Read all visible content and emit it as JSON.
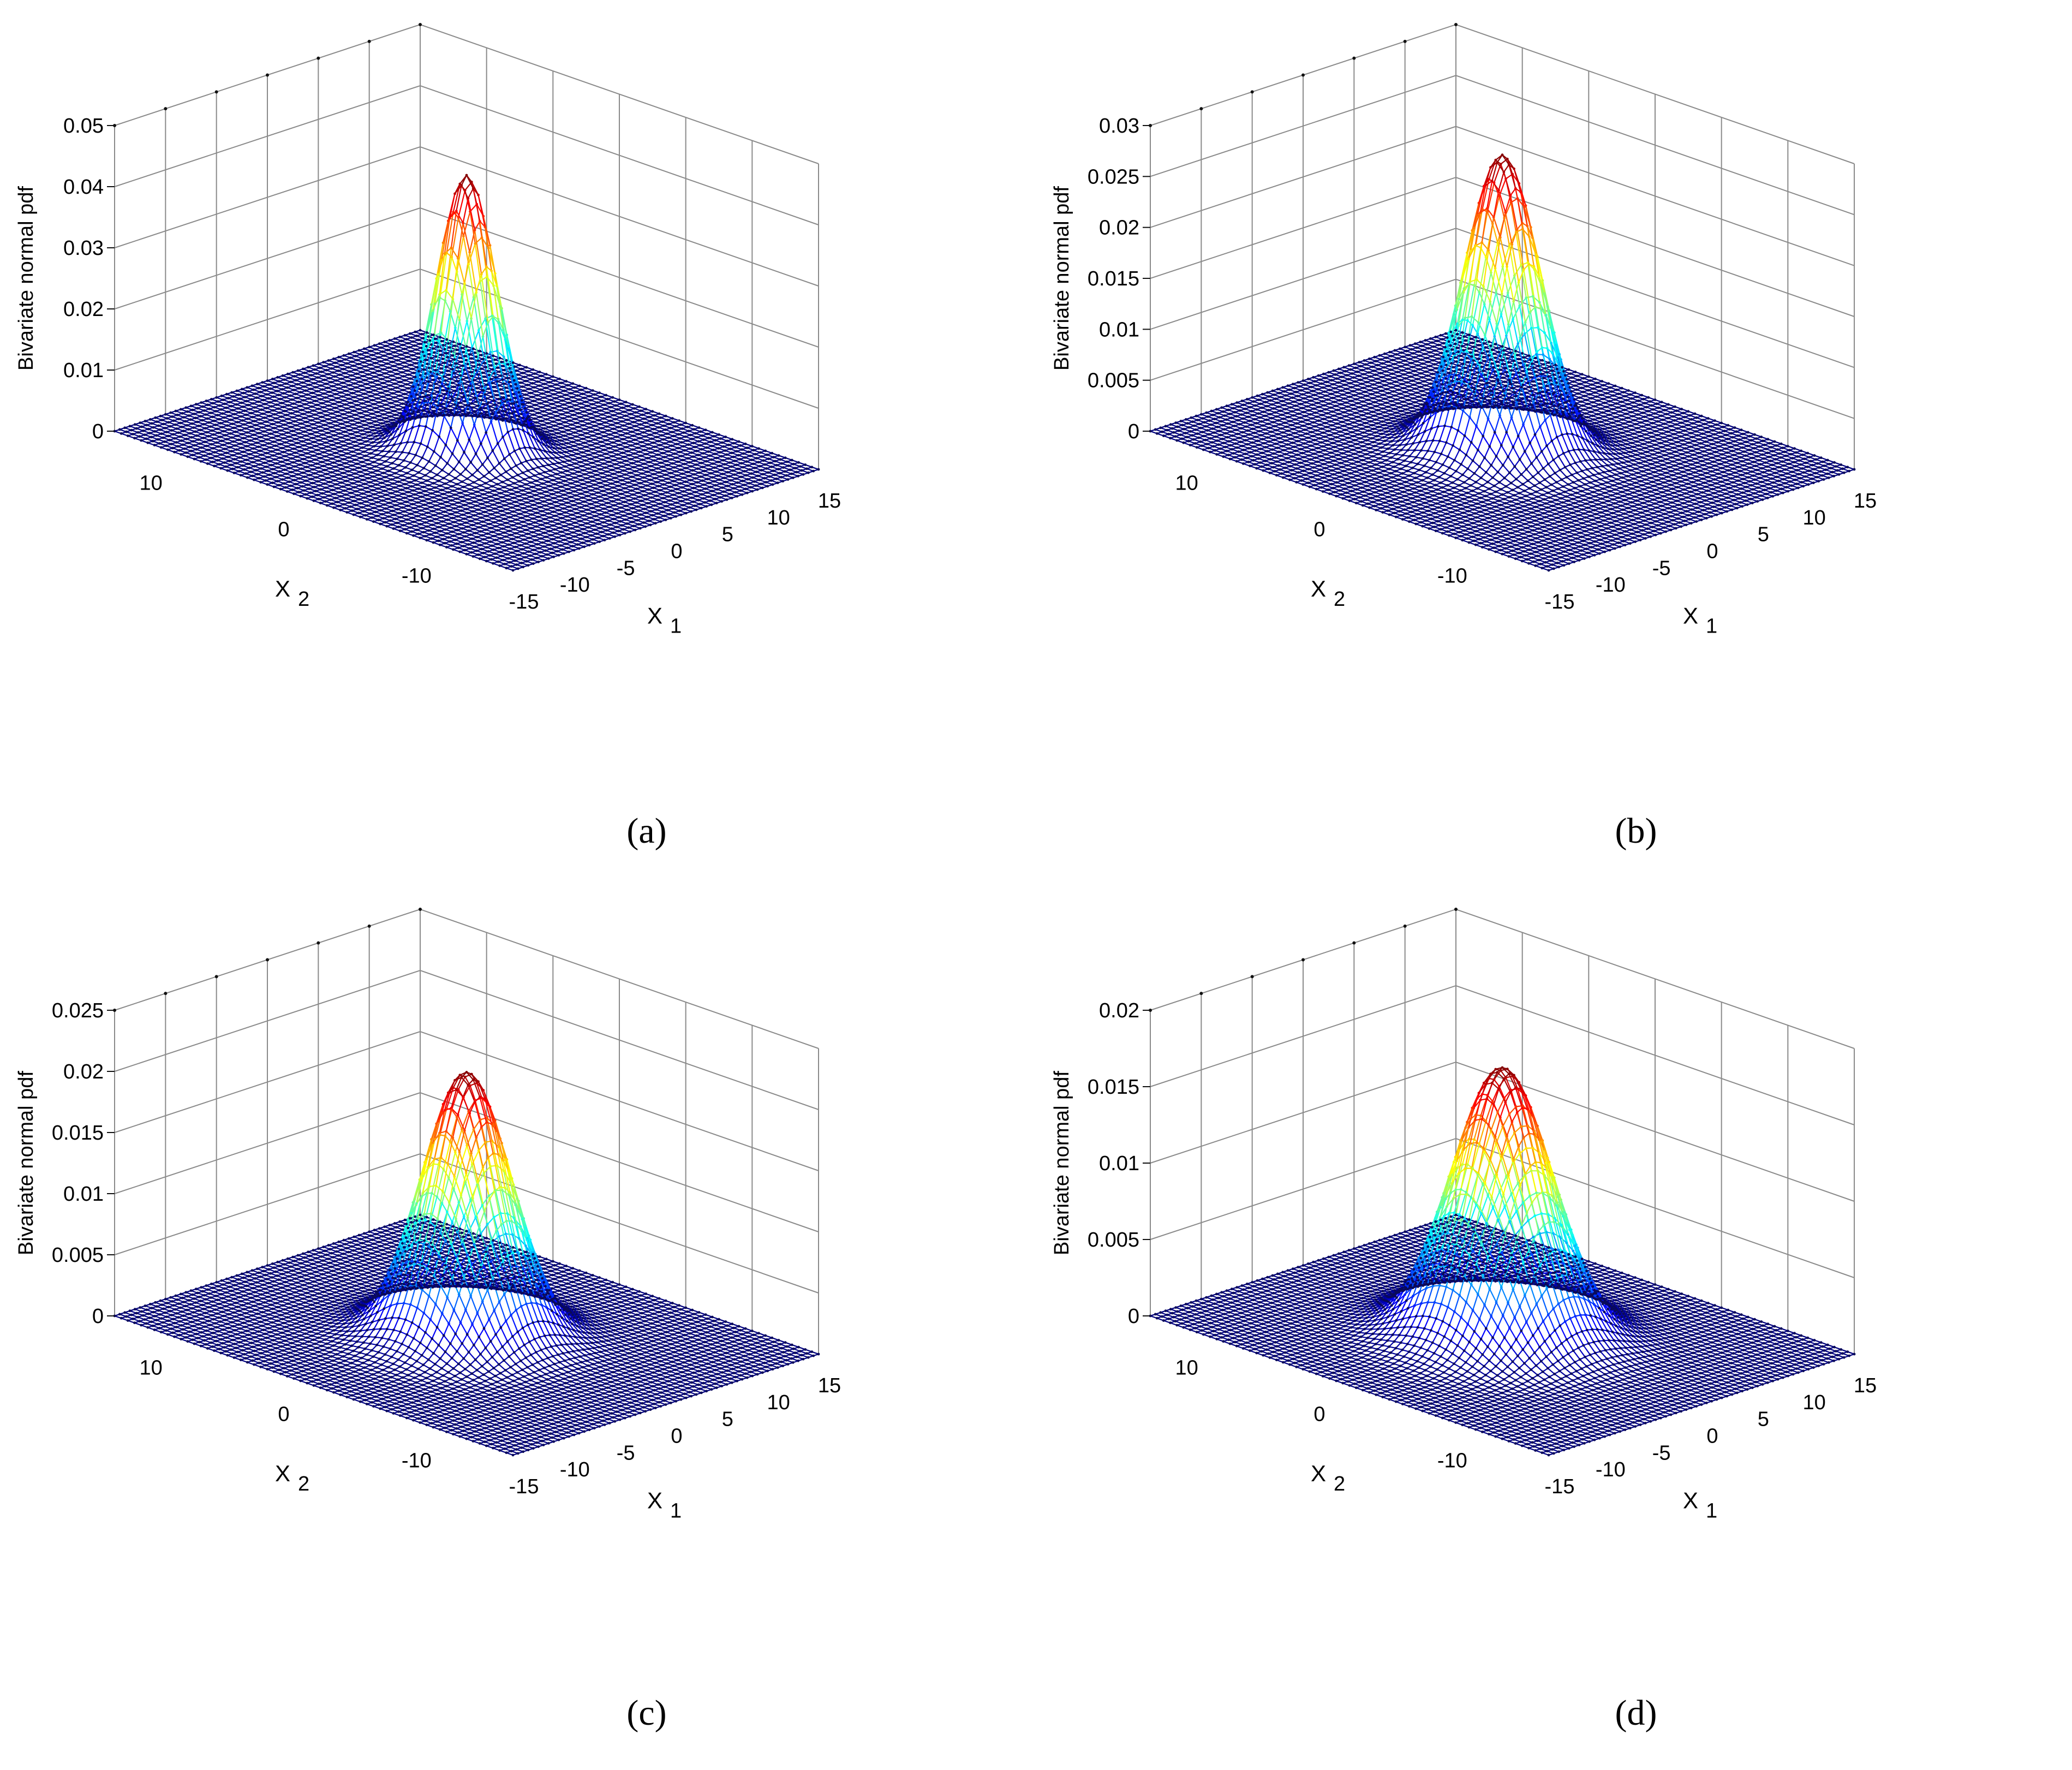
{
  "chart_data": [
    {
      "type": "surface",
      "caption": "(a)",
      "title": "",
      "xlabel": "X",
      "xlabel_sub": "1",
      "ylabel": "X",
      "ylabel_sub": "2",
      "zlabel": "Bivariate normal pdf",
      "xlim": [
        -15,
        15
      ],
      "ylim": [
        -15,
        15
      ],
      "zlim": [
        0,
        0.05
      ],
      "x_ticks": [
        "-15",
        "-10",
        "-5",
        "0",
        "5",
        "10",
        "15"
      ],
      "x_tick_values": [
        -15,
        -10,
        -5,
        0,
        5,
        10,
        15
      ],
      "y_ticks": [
        "-10",
        "0",
        "10"
      ],
      "y_tick_values": [
        -10,
        0,
        10
      ],
      "z_ticks": [
        "0",
        "0.01",
        "0.02",
        "0.03",
        "0.04",
        "0.05"
      ],
      "z_tick_values": [
        0,
        0.01,
        0.02,
        0.03,
        0.04,
        0.05
      ],
      "distribution": {
        "mu_x1": 0,
        "mu_x2": 0,
        "sigma_x1": 2.0,
        "sigma_x2": 1.75,
        "rho": 0,
        "peak": 0.045
      }
    },
    {
      "type": "surface",
      "caption": "(b)",
      "title": "",
      "xlabel": "X",
      "xlabel_sub": "1",
      "ylabel": "X",
      "ylabel_sub": "2",
      "zlabel": "Bivariate normal pdf",
      "xlim": [
        -15,
        15
      ],
      "ylim": [
        -15,
        15
      ],
      "zlim": [
        0,
        0.03
      ],
      "x_ticks": [
        "-15",
        "-10",
        "-5",
        "0",
        "5",
        "10",
        "15"
      ],
      "x_tick_values": [
        -15,
        -10,
        -5,
        0,
        5,
        10,
        15
      ],
      "y_ticks": [
        "-10",
        "0",
        "10"
      ],
      "y_tick_values": [
        -10,
        0,
        10
      ],
      "z_ticks": [
        "0",
        "0.005",
        "0.01",
        "0.015",
        "0.02",
        "0.025",
        "0.03"
      ],
      "z_tick_values": [
        0,
        0.005,
        0.01,
        0.015,
        0.02,
        0.025,
        0.03
      ],
      "distribution": {
        "mu_x1": 0,
        "mu_x2": 0,
        "sigma_x1": 2.5,
        "sigma_x2": 2.2,
        "rho": 0,
        "peak": 0.029
      }
    },
    {
      "type": "surface",
      "caption": "(c)",
      "title": "",
      "xlabel": "X",
      "xlabel_sub": "1",
      "ylabel": "X",
      "ylabel_sub": "2",
      "zlabel": "Bivariate normal pdf",
      "xlim": [
        -15,
        15
      ],
      "ylim": [
        -15,
        15
      ],
      "zlim": [
        0,
        0.025
      ],
      "x_ticks": [
        "-15",
        "-10",
        "-5",
        "0",
        "5",
        "10",
        "15"
      ],
      "x_tick_values": [
        -15,
        -10,
        -5,
        0,
        5,
        10,
        15
      ],
      "y_ticks": [
        "-10",
        "0",
        "10"
      ],
      "y_tick_values": [
        -10,
        0,
        10
      ],
      "z_ticks": [
        "0",
        "0.005",
        "0.01",
        "0.015",
        "0.02",
        "0.025"
      ],
      "z_tick_values": [
        0,
        0.005,
        0.01,
        0.015,
        0.02,
        0.025
      ],
      "distribution": {
        "mu_x1": 0,
        "mu_x2": 0,
        "sigma_x1": 3.0,
        "sigma_x2": 2.5,
        "rho": 0,
        "peak": 0.0215
      }
    },
    {
      "type": "surface",
      "caption": "(d)",
      "title": "",
      "xlabel": "X",
      "xlabel_sub": "1",
      "ylabel": "X",
      "ylabel_sub": "2",
      "zlabel": "Bivariate normal pdf",
      "xlim": [
        -15,
        15
      ],
      "ylim": [
        -15,
        15
      ],
      "zlim": [
        0,
        0.02
      ],
      "x_ticks": [
        "-15",
        "-10",
        "-5",
        "0",
        "5",
        "10",
        "15"
      ],
      "x_tick_values": [
        -15,
        -10,
        -5,
        0,
        5,
        10,
        15
      ],
      "y_ticks": [
        "-10",
        "0",
        "10"
      ],
      "y_tick_values": [
        -10,
        0,
        10
      ],
      "z_ticks": [
        "0",
        "0.005",
        "0.01",
        "0.015",
        "0.02"
      ],
      "z_tick_values": [
        0,
        0.005,
        0.01,
        0.015,
        0.02
      ],
      "distribution": {
        "mu_x1": 0,
        "mu_x2": 0,
        "sigma_x1": 3.3,
        "sigma_x2": 2.9,
        "rho": 0,
        "peak": 0.0175
      }
    }
  ]
}
